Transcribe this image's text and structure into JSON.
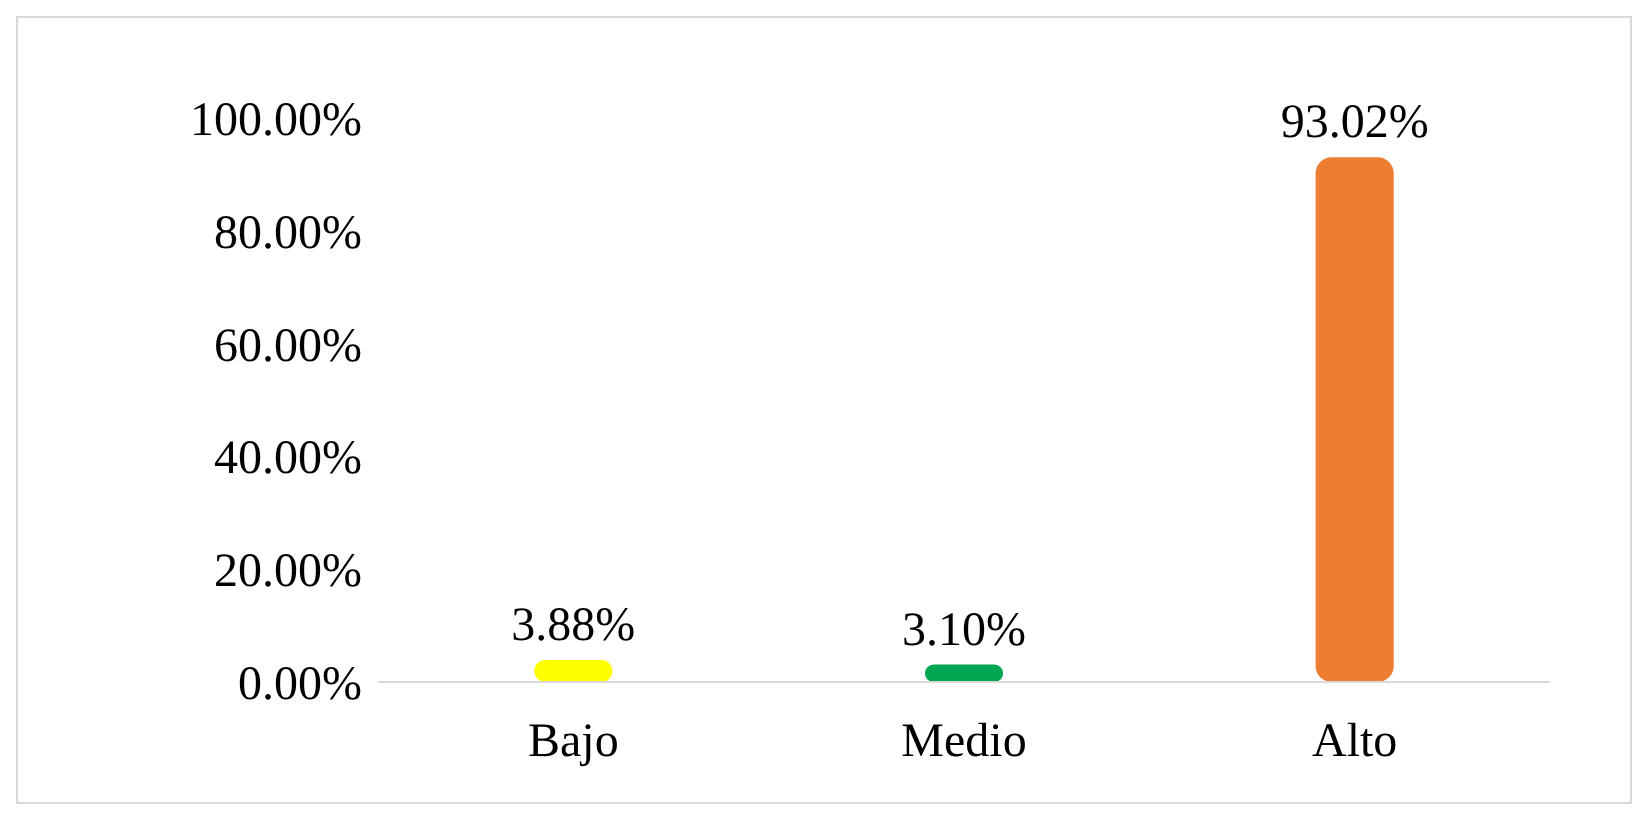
{
  "chart_data": {
    "type": "bar",
    "categories": [
      "Bajo",
      "Medio",
      "Alto"
    ],
    "values": [
      3.88,
      3.1,
      93.02
    ],
    "colors": [
      "#ffff00",
      "#00a651",
      "#ed7d31"
    ],
    "value_labels": [
      "3.88%",
      "3.10%",
      "93.02%"
    ],
    "ylim": [
      0,
      100
    ],
    "yticks": [
      {
        "value": 0,
        "label": "0.00%"
      },
      {
        "value": 20,
        "label": "20.00%"
      },
      {
        "value": 40,
        "label": "40.00%"
      },
      {
        "value": 60,
        "label": "60.00%"
      },
      {
        "value": 80,
        "label": "80.00%"
      },
      {
        "value": 100,
        "label": "100.00%"
      }
    ],
    "grid": false,
    "legend": false
  }
}
